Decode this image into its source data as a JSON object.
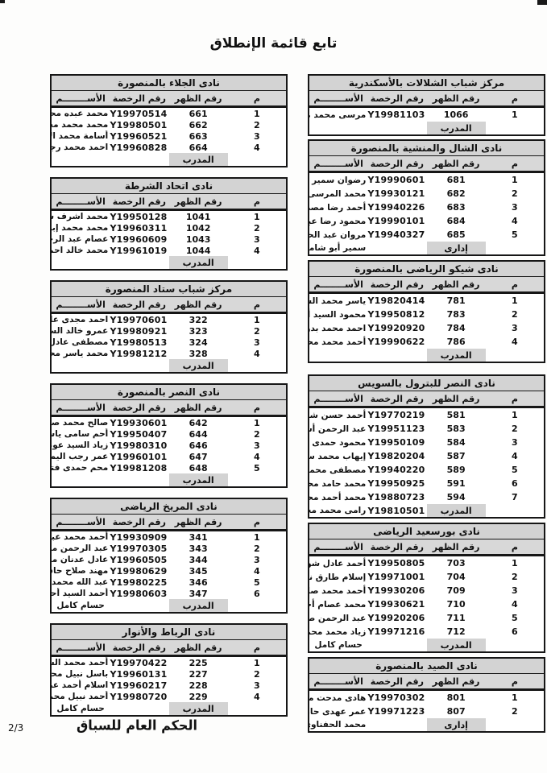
{
  "page": {
    "title": "تابع قائمة الإنطلاق",
    "page_number": "2/3",
    "signature": "الحكم العام للسباق"
  },
  "columns": {
    "num": "م",
    "back": "رقم الظهر",
    "license": "رقم الرخصة",
    "name": "الأســــــــم"
  },
  "right_tables": [
    {
      "title": "مركز شباب الشلالات بالأسكندرية",
      "rows": [
        {
          "num": "1",
          "back": "1066",
          "license": "EGY19981103",
          "name": "مرسى محمد مرسى"
        }
      ],
      "footer": {
        "role": "المدرب",
        "license": "",
        "name": ""
      }
    },
    {
      "title": "نادى الشال والمنشية بالمنصورة",
      "rows": [
        {
          "num": "1",
          "back": "681",
          "license": "EGY19990601",
          "name": "رضوان سمير إبراهيم"
        },
        {
          "num": "2",
          "back": "682",
          "license": "EGY19930121",
          "name": "محمد المرسى محمد"
        },
        {
          "num": "3",
          "back": "683",
          "license": "EGY19940226",
          "name": "أحمد رضا مصطفى"
        },
        {
          "num": "4",
          "back": "684",
          "license": "EGY19990101",
          "name": "محمود رضا عبد النبى"
        },
        {
          "num": "5",
          "back": "685",
          "license": "EGY19940327",
          "name": "مروان عبد الحميد سليمان"
        }
      ],
      "footer": {
        "role": "إدارى",
        "license": "",
        "name": "سمير أبو شامه"
      }
    },
    {
      "title": "نادى شيكو الرياضى بالمنصورة",
      "rows": [
        {
          "num": "1",
          "back": "781",
          "license": "EGY19820414",
          "name": "ياسر محمد الشحات"
        },
        {
          "num": "2",
          "back": "783",
          "license": "EGY19950812",
          "name": "محمود السيد أحمد فتحى"
        },
        {
          "num": "3",
          "back": "784",
          "license": "EGY19920920",
          "name": "احمد محمد بدوى"
        },
        {
          "num": "4",
          "back": "786",
          "license": "EGY19990622",
          "name": "أحمد محمد محمد المنسى"
        }
      ],
      "footer": {
        "role": "المدرب",
        "license": "",
        "name": ""
      }
    },
    {
      "title": "نادى النصر للبترول بالسويس",
      "rows": [
        {
          "num": "1",
          "back": "581",
          "license": "EGY19770219",
          "name": "أحمد حسن شحاته"
        },
        {
          "num": "2",
          "back": "583",
          "license": "EGY19951123",
          "name": "عبد الرحمن أشرف سليمان"
        },
        {
          "num": "3",
          "back": "584",
          "license": "EGY19950109",
          "name": "محمود حمدى أحمد"
        },
        {
          "num": "4",
          "back": "587",
          "license": "EGY19820204",
          "name": "إيهاب محمد سليم محمد"
        },
        {
          "num": "5",
          "back": "589",
          "license": "EGY19940220",
          "name": "مصطفى محمود عبد المبدى"
        },
        {
          "num": "6",
          "back": "591",
          "license": "EGY19950925",
          "name": "محمد حامد محمد حامد"
        },
        {
          "num": "7",
          "back": "594",
          "license": "EGY19880723",
          "name": "محمد أحمد محمد على"
        }
      ],
      "footer": {
        "role": "المدرب",
        "license": "EGY19810501",
        "name": "رامى محمد محمد"
      }
    },
    {
      "title": "نادى بورسعيد الرياضى",
      "rows": [
        {
          "num": "1",
          "back": "703",
          "license": "EGY19950805",
          "name": "أحمد عادل شوقى"
        },
        {
          "num": "2",
          "back": "704",
          "license": "EGY19971001",
          "name": "إسلام طارق نظمى"
        },
        {
          "num": "3",
          "back": "709",
          "license": "EGY19930206",
          "name": "أحمد محمد صابر أحمد"
        },
        {
          "num": "4",
          "back": "710",
          "license": "EGY19930621",
          "name": "محمد عصام أحمد عبده"
        },
        {
          "num": "5",
          "back": "711",
          "license": "EGY19920206",
          "name": "عبد الرحمن صلاح الدين"
        },
        {
          "num": "6",
          "back": "712",
          "license": "EGY19971216",
          "name": "زياد محمد محمد يوسف"
        }
      ],
      "footer": {
        "role": "المدرب",
        "license": "",
        "name": "حسام كامل"
      }
    },
    {
      "title": "نادى الصيد بالمنصورة",
      "rows": [
        {
          "num": "1",
          "back": "801",
          "license": "EGY19970302",
          "name": "هادى مدحت محمد"
        },
        {
          "num": "2",
          "back": "807",
          "license": "EGY19971223",
          "name": "عمر عهدى حامد"
        }
      ],
      "footer": {
        "role": "إدارى",
        "license": "",
        "name": "محمد الحفناوى"
      }
    }
  ],
  "left_tables": [
    {
      "title": "نادى الجلاء بالمنصورة",
      "rows": [
        {
          "num": "1",
          "back": "661",
          "license": "EGY19970514",
          "name": "محمد عبده محمد عبده"
        },
        {
          "num": "2",
          "back": "662",
          "license": "EGY19980501",
          "name": "محمد محمد محمود مصطفى"
        },
        {
          "num": "3",
          "back": "663",
          "license": "EGY19960521",
          "name": "أسامة محمد الألفى إبراهيم"
        },
        {
          "num": "4",
          "back": "664",
          "license": "EGY19960828",
          "name": "احمد محمد رجاء يونس"
        }
      ],
      "footer": {
        "role": "المدرب",
        "license": "",
        "name": ""
      }
    },
    {
      "title": "نادى اتحاد الشرطة",
      "rows": [
        {
          "num": "1",
          "back": "1041",
          "license": "EGY19950128",
          "name": "محمد اشرف سيد موسى"
        },
        {
          "num": "2",
          "back": "1042",
          "license": "EGY19960311",
          "name": "محمد محمد إبراهيم"
        },
        {
          "num": "3",
          "back": "1043",
          "license": "EGY19960609",
          "name": "عصام عبد الرحمن مصطفى"
        },
        {
          "num": "4",
          "back": "1044",
          "license": "EGY19961019",
          "name": "محمد خالد احمد"
        }
      ],
      "footer": {
        "role": "المدرب",
        "license": "",
        "name": ""
      }
    },
    {
      "title": "مركز شباب ستاد المنصورة",
      "rows": [
        {
          "num": "1",
          "back": "322",
          "license": "EGY19970601",
          "name": "احمد مجدى عايق"
        },
        {
          "num": "2",
          "back": "323",
          "license": "EGY19980921",
          "name": "عمرو خالد السيد"
        },
        {
          "num": "3",
          "back": "324",
          "license": "EGY19980513",
          "name": "مصطفى عادل عبد الحليم"
        },
        {
          "num": "4",
          "back": "328",
          "license": "EGY19981212",
          "name": "محمد ياسر محمد زياده"
        }
      ],
      "footer": {
        "role": "المدرب",
        "license": "",
        "name": ""
      }
    },
    {
      "title": "نادى النصر بالمنصورة",
      "rows": [
        {
          "num": "1",
          "back": "642",
          "license": "EGY19930601",
          "name": "صالح محمد صالح"
        },
        {
          "num": "2",
          "back": "644",
          "license": "EGY19950407",
          "name": "أحم سامى ياسين محمد"
        },
        {
          "num": "3",
          "back": "646",
          "license": "EGY19980310",
          "name": "زياد السيد عوض"
        },
        {
          "num": "4",
          "back": "647",
          "license": "EGY19960101",
          "name": "عمر رجب اليمانى رزق"
        },
        {
          "num": "5",
          "back": "648",
          "license": "EGY19981208",
          "name": "محم حمدى فتحى الحسانين"
        }
      ],
      "footer": {
        "role": "المدرب",
        "license": "",
        "name": ""
      }
    },
    {
      "title": "نادى المريخ الرياضى",
      "rows": [
        {
          "num": "1",
          "back": "341",
          "license": "EGY19930909",
          "name": "أحمد محمد عبد المحسن"
        },
        {
          "num": "2",
          "back": "343",
          "license": "EGY19970305",
          "name": "عبد الرحمن محمود طلعت"
        },
        {
          "num": "3",
          "back": "344",
          "license": "EGY19960505",
          "name": "عادل عدنان محمد"
        },
        {
          "num": "4",
          "back": "345",
          "license": "EGY19980629",
          "name": "مهند صلاح حافظ السرى"
        },
        {
          "num": "5",
          "back": "346",
          "license": "EGY19980225",
          "name": "عبد الله محمد محمود"
        },
        {
          "num": "6",
          "back": "347",
          "license": "EGY19980603",
          "name": "أحمد السيد أحمد الجندى"
        }
      ],
      "footer": {
        "role": "المدرب",
        "license": "",
        "name": "حسام كامل"
      }
    },
    {
      "title": "نادى الرباط والأنوار",
      "rows": [
        {
          "num": "1",
          "back": "225",
          "license": "EGY19970422",
          "name": "أحمد محمد السيد"
        },
        {
          "num": "2",
          "back": "227",
          "license": "EGY19960131",
          "name": "باسل نبيل محمد عبده"
        },
        {
          "num": "3",
          "back": "228",
          "license": "EGY19960217",
          "name": "اسلام أحمد عبد الفتاح"
        },
        {
          "num": "4",
          "back": "229",
          "license": "EGY19980720",
          "name": "أحمد نبيل محمد"
        }
      ],
      "footer": {
        "role": "المدرب",
        "license": "",
        "name": "حسام كامل"
      }
    }
  ]
}
